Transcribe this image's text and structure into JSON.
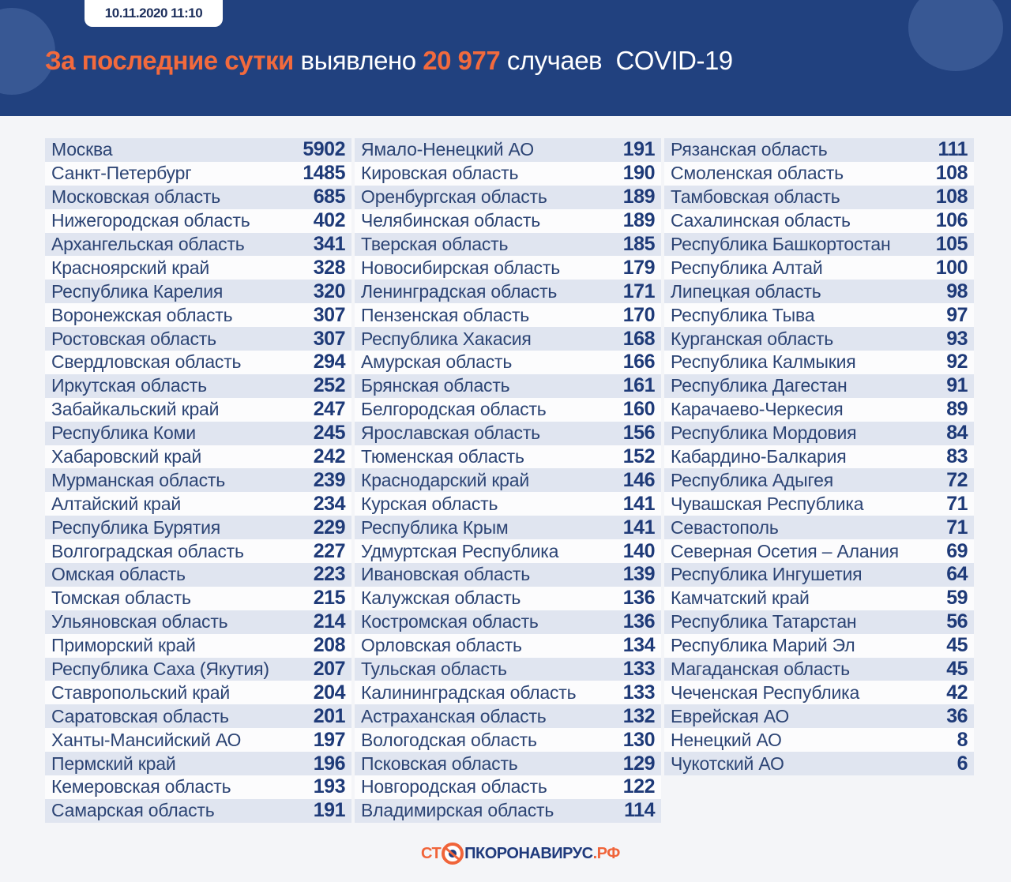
{
  "header": {
    "date": "10.11.2020 11:10",
    "title_part1": "За последние сутки",
    "title_part2": "выявлено",
    "title_number": "20 977",
    "title_part3": "случаев",
    "title_part4": "COVID-19"
  },
  "colors": {
    "header_bg": "#21417f",
    "accent": "#f26a3d",
    "value_text": "#1e3a78"
  },
  "columns": [
    [
      [
        "Москва",
        "5902"
      ],
      [
        "Санкт-Петербург",
        "1485"
      ],
      [
        "Московская область",
        "685"
      ],
      [
        "Нижегородская область",
        "402"
      ],
      [
        "Архангельская область",
        "341"
      ],
      [
        "Красноярский край",
        "328"
      ],
      [
        "Республика Карелия",
        "320"
      ],
      [
        "Воронежская область",
        "307"
      ],
      [
        "Ростовская область",
        "307"
      ],
      [
        "Свердловская область",
        "294"
      ],
      [
        "Иркутская область",
        "252"
      ],
      [
        "Забайкальский край",
        "247"
      ],
      [
        "Республика Коми",
        "245"
      ],
      [
        "Хабаровский край",
        "242"
      ],
      [
        "Мурманская область",
        "239"
      ],
      [
        "Алтайский край",
        "234"
      ],
      [
        "Республика Бурятия",
        "229"
      ],
      [
        "Волгоградская область",
        "227"
      ],
      [
        "Омская область",
        "223"
      ],
      [
        "Томская область",
        "215"
      ],
      [
        "Ульяновская область",
        "214"
      ],
      [
        "Приморский край",
        "208"
      ],
      [
        "Республика Саха (Якутия)",
        "207"
      ],
      [
        "Ставропольский край",
        "204"
      ],
      [
        "Саратовская область",
        "201"
      ],
      [
        "Ханты-Мансийский АО",
        "197"
      ],
      [
        "Пермский край",
        "196"
      ],
      [
        "Кемеровская область",
        "193"
      ],
      [
        "Самарская область",
        "191"
      ]
    ],
    [
      [
        "Ямало-Ненецкий АО",
        "191"
      ],
      [
        "Кировская область",
        "190"
      ],
      [
        "Оренбургская область",
        "189"
      ],
      [
        "Челябинская область",
        "189"
      ],
      [
        "Тверская область",
        "185"
      ],
      [
        "Новосибирская область",
        "179"
      ],
      [
        "Ленинградская область",
        "171"
      ],
      [
        "Пензенская область",
        "170"
      ],
      [
        "Республика Хакасия",
        "168"
      ],
      [
        "Амурская область",
        "166"
      ],
      [
        "Брянская область",
        "161"
      ],
      [
        "Белгородская область",
        "160"
      ],
      [
        "Ярославская область",
        "156"
      ],
      [
        "Тюменская область",
        "152"
      ],
      [
        "Краснодарский край",
        "146"
      ],
      [
        "Курская область",
        "141"
      ],
      [
        "Республика Крым",
        "141"
      ],
      [
        "Удмуртская Республика",
        "140"
      ],
      [
        "Ивановская область",
        "139"
      ],
      [
        "Калужская область",
        "136"
      ],
      [
        "Костромская область",
        "136"
      ],
      [
        "Орловская область",
        "134"
      ],
      [
        "Тульская область",
        "133"
      ],
      [
        "Калининградская область",
        "133"
      ],
      [
        "Астраханская область",
        "132"
      ],
      [
        "Вологодская область",
        "130"
      ],
      [
        "Псковская область",
        "129"
      ],
      [
        "Новгородская область",
        "122"
      ],
      [
        "Владимирская область",
        "114"
      ]
    ],
    [
      [
        "Рязанская область",
        "111"
      ],
      [
        "Смоленская область",
        "108"
      ],
      [
        "Тамбовская область",
        "108"
      ],
      [
        "Сахалинская область",
        "106"
      ],
      [
        "Республика Башкортостан",
        "105"
      ],
      [
        "Республика Алтай",
        "100"
      ],
      [
        "Липецкая область",
        "98"
      ],
      [
        "Республика Тыва",
        "97"
      ],
      [
        "Курганская область",
        "93"
      ],
      [
        "Республика Калмыкия",
        "92"
      ],
      [
        "Республика Дагестан",
        "91"
      ],
      [
        "Карачаево-Черкесия",
        "89"
      ],
      [
        "Республика Мордовия",
        "84"
      ],
      [
        "Кабардино-Балкария",
        "83"
      ],
      [
        "Республика Адыгея",
        "72"
      ],
      [
        "Чувашская Республика",
        "71"
      ],
      [
        "Севастополь",
        "71"
      ],
      [
        "Северная Осетия – Алания",
        "69"
      ],
      [
        "Республика Ингушетия",
        "64"
      ],
      [
        "Камчатский край",
        "59"
      ],
      [
        "Республика Татарстан",
        "56"
      ],
      [
        "Республика Марий Эл",
        "45"
      ],
      [
        "Магаданская область",
        "45"
      ],
      [
        "Чеченская Республика",
        "42"
      ],
      [
        "Еврейская АО",
        "36"
      ],
      [
        "Ненецкий АО",
        "8"
      ],
      [
        "Чукотский АО",
        "6"
      ]
    ]
  ],
  "footer": {
    "logo_part1": "СТ",
    "logo_part2": "ПКОРОНАВИРУС",
    "logo_part3": ".РФ"
  }
}
